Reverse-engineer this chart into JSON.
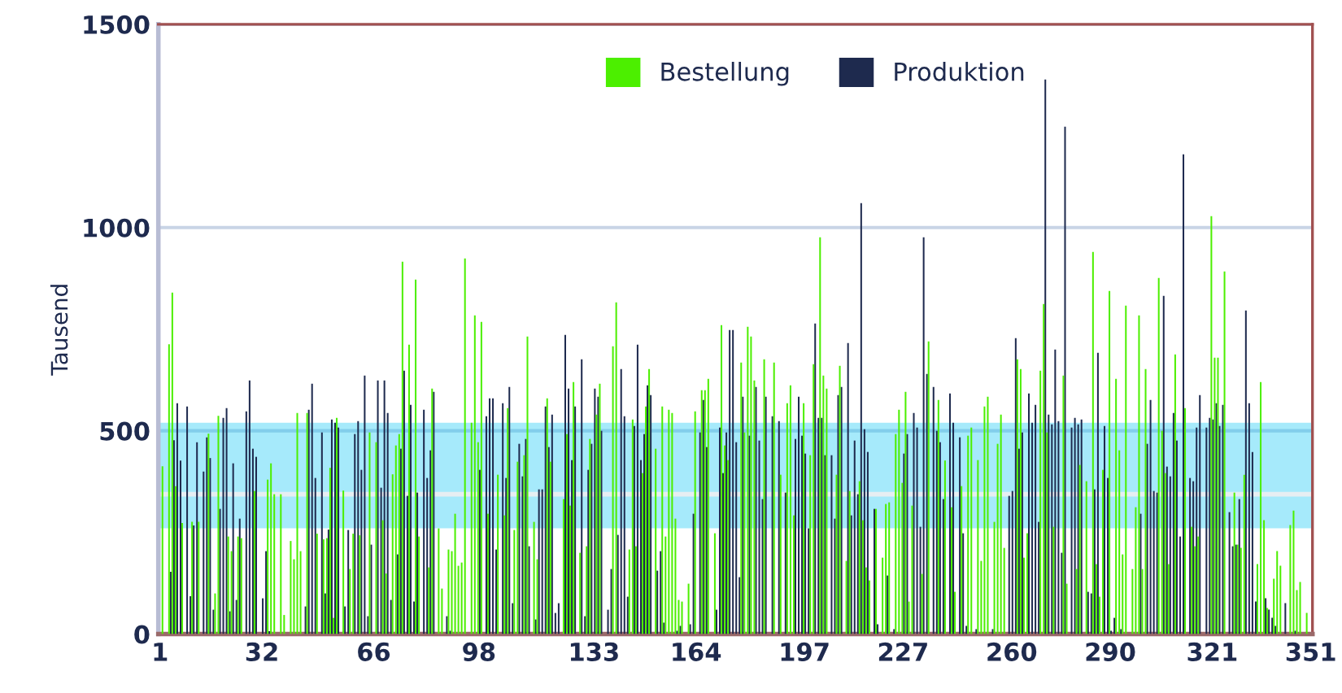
{
  "chart_data": {
    "type": "bar",
    "ylabel": "Tausend",
    "categories": [
      "1",
      null,
      null,
      null,
      null,
      null,
      null,
      null,
      null,
      null,
      null,
      null,
      null,
      null,
      null,
      null,
      null,
      null,
      null,
      null,
      null,
      null,
      null,
      null,
      null,
      null,
      null,
      null,
      null,
      null,
      null,
      "32",
      null,
      null,
      null,
      null,
      null,
      null,
      null,
      null,
      null,
      null,
      null,
      null,
      null,
      null,
      null,
      null,
      null,
      null,
      null,
      null,
      null,
      null,
      null,
      null,
      null,
      null,
      null,
      null,
      null,
      null,
      null,
      null,
      null,
      "66",
      null,
      null,
      null,
      null,
      null,
      null,
      null,
      null,
      null,
      null,
      null,
      null,
      null,
      null,
      null,
      null,
      null,
      null,
      null,
      null,
      null,
      null,
      null,
      null,
      null,
      null,
      null,
      null,
      null,
      null,
      null,
      "98",
      null,
      null,
      null,
      null,
      null,
      null,
      null,
      null,
      null,
      null,
      null,
      null,
      null,
      null,
      null,
      null,
      null,
      null,
      null,
      null,
      null,
      null,
      null,
      null,
      null,
      null,
      null,
      null,
      null,
      null,
      null,
      null,
      null,
      null,
      "133",
      null,
      null,
      null,
      null,
      null,
      null,
      null,
      null,
      null,
      null,
      null,
      null,
      null,
      null,
      null,
      null,
      null,
      null,
      null,
      null,
      null,
      null,
      null,
      null,
      null,
      null,
      null,
      null,
      null,
      null,
      "164",
      null,
      null,
      null,
      null,
      null,
      null,
      null,
      null,
      null,
      null,
      null,
      null,
      null,
      null,
      null,
      null,
      null,
      null,
      null,
      null,
      null,
      null,
      null,
      null,
      null,
      null,
      null,
      null,
      null,
      null,
      null,
      null,
      "197",
      null,
      null,
      null,
      null,
      null,
      null,
      null,
      null,
      null,
      null,
      null,
      null,
      null,
      null,
      null,
      null,
      null,
      null,
      null,
      null,
      null,
      null,
      null,
      null,
      null,
      null,
      null,
      null,
      null,
      "227",
      null,
      null,
      null,
      null,
      null,
      null,
      null,
      null,
      null,
      null,
      null,
      null,
      null,
      null,
      null,
      null,
      null,
      null,
      null,
      null,
      null,
      null,
      null,
      null,
      null,
      null,
      null,
      null,
      null,
      null,
      null,
      null,
      "260",
      null,
      null,
      null,
      null,
      null,
      null,
      null,
      null,
      null,
      null,
      null,
      null,
      null,
      null,
      null,
      null,
      null,
      null,
      null,
      null,
      null,
      null,
      null,
      null,
      null,
      null,
      null,
      null,
      null,
      "290",
      null,
      null,
      null,
      null,
      null,
      null,
      null,
      null,
      null,
      null,
      null,
      null,
      null,
      null,
      null,
      null,
      null,
      null,
      null,
      null,
      null,
      null,
      null,
      null,
      null,
      null,
      null,
      null,
      null,
      null,
      "321",
      null,
      null,
      null,
      null,
      null,
      null,
      null,
      null,
      null,
      null,
      null,
      null,
      null,
      null,
      null,
      null,
      null,
      null,
      null,
      null,
      null,
      null,
      null,
      null,
      null,
      null,
      null,
      null,
      null,
      "351"
    ],
    "series": [
      {
        "name": "Bestellung",
        "color": "#4cef00",
        "values": [
          null,
          413,
          null,
          713,
          840,
          364,
          null,
          273,
          null,
          null,
          276,
          null,
          276,
          null,
          null,
          493,
          null,
          100,
          537,
          null,
          null,
          240,
          204,
          null,
          240,
          236,
          null,
          null,
          null,
          352,
          null,
          null,
          null,
          380,
          420,
          344,
          null,
          344,
          47,
          null,
          229,
          184,
          544,
          204,
          null,
          544,
          null,
          null,
          247,
          null,
          233,
          236,
          409,
          40,
          532,
          null,
          353,
          null,
          160,
          247,
          null,
          243,
          null,
          null,
          496,
          null,
          472,
          null,
          280,
          149,
          null,
          393,
          464,
          492,
          916,
          null,
          712,
          null,
          872,
          240,
          null,
          null,
          164,
          604,
          null,
          260,
          112,
          null,
          208,
          204,
          296,
          168,
          176,
          924,
          null,
          520,
          784,
          472,
          768,
          null,
          296,
          null,
          null,
          392,
          null,
          292,
          556,
          null,
          256,
          424,
          null,
          440,
          732,
          null,
          276,
          184,
          null,
          null,
          580,
          424,
          null,
          null,
          null,
          332,
          492,
          316,
          620,
          null,
          200,
          null,
          216,
          480,
          null,
          540,
          616,
          null,
          null,
          null,
          708,
          816,
          null,
          null,
          null,
          208,
          528,
          216,
          null,
          396,
          560,
          652,
          null,
          456,
          null,
          560,
          240,
          552,
          544,
          284,
          84,
          80,
          null,
          124,
          null,
          548,
          null,
          600,
          600,
          628,
          null,
          248,
          null,
          760,
          464,
          428,
          null,
          null,
          null,
          668,
          496,
          756,
          732,
          624,
          null,
          null,
          676,
          null,
          null,
          668,
          null,
          392,
          null,
          568,
          612,
          292,
          null,
          null,
          568,
          null,
          440,
          664,
          null,
          976,
          636,
          604,
          null,
          null,
          392,
          660,
          null,
          180,
          352,
          null,
          null,
          376,
          280,
          164,
          132,
          null,
          308,
          null,
          188,
          320,
          324,
          null,
          492,
          552,
          372,
          596,
          80,
          316,
          null,
          null,
          148,
          null,
          720,
          null,
          null,
          576,
          null,
          427,
          null,
          312,
          104,
          null,
          364,
          null,
          488,
          508,
          null,
          428,
          180,
          560,
          584,
          null,
          276,
          468,
          540,
          212,
          null,
          null,
          null,
          676,
          652,
          188,
          248,
          null,
          null,
          null,
          648,
          812,
          496,
          null,
          264,
          null,
          null,
          636,
          124,
          null,
          null,
          160,
          416,
          null,
          376,
          null,
          940,
          172,
          92,
          404,
          null,
          844,
          null,
          628,
          452,
          196,
          808,
          null,
          160,
          312,
          784,
          160,
          652,
          null,
          null,
          null,
          876,
          500,
          396,
          172,
          null,
          688,
          null,
          null,
          556,
          null,
          264,
          216,
          240,
          null,
          null,
          null,
          1028,
          680,
          680,
          null,
          892,
          null,
          null,
          348,
          220,
          212,
          392,
          null,
          null,
          null,
          172,
          620,
          280,
          64,
          null,
          136,
          204,
          168,
          null,
          null,
          268,
          304,
          108,
          128,
          null,
          52,
          null
        ]
      },
      {
        "name": "Produktion",
        "color": "#1e2a4e",
        "values": [
          null,
          null,
          null,
          153,
          477,
          568,
          427,
          null,
          560,
          93,
          267,
          472,
          null,
          400,
          484,
          433,
          60,
          null,
          308,
          532,
          556,
          56,
          420,
          84,
          284,
          null,
          548,
          624,
          456,
          436,
          null,
          88,
          204,
          7,
          null,
          null,
          null,
          null,
          null,
          null,
          null,
          null,
          null,
          null,
          68,
          552,
          616,
          384,
          null,
          496,
          100,
          257,
          528,
          520,
          508,
          null,
          68,
          256,
          null,
          492,
          524,
          404,
          636,
          44,
          220,
          null,
          624,
          360,
          624,
          544,
          84,
          null,
          196,
          456,
          648,
          340,
          564,
          80,
          348,
          null,
          552,
          384,
          452,
          596,
          null,
          null,
          null,
          44,
          8,
          null,
          null,
          null,
          null,
          null,
          null,
          null,
          null,
          404,
          null,
          536,
          580,
          580,
          208,
          null,
          568,
          384,
          608,
          76,
          null,
          468,
          388,
          480,
          216,
          null,
          36,
          356,
          356,
          560,
          460,
          540,
          52,
          76,
          null,
          736,
          604,
          428,
          560,
          null,
          676,
          44,
          404,
          468,
          604,
          584,
          500,
          null,
          60,
          160,
          null,
          244,
          652,
          536,
          92,
          null,
          512,
          712,
          428,
          492,
          612,
          588,
          null,
          156,
          204,
          28,
          null,
          null,
          null,
          8,
          20,
          null,
          null,
          24,
          296,
          null,
          496,
          576,
          460,
          null,
          null,
          60,
          508,
          396,
          496,
          748,
          748,
          472,
          140,
          584,
          null,
          488,
          null,
          608,
          476,
          332,
          584,
          null,
          536,
          null,
          524,
          null,
          348,
          null,
          null,
          480,
          584,
          488,
          444,
          260,
          null,
          764,
          532,
          532,
          440,
          null,
          440,
          284,
          588,
          608,
          null,
          716,
          292,
          476,
          344,
          1060,
          504,
          448,
          null,
          308,
          24,
          null,
          null,
          144,
          null,
          12,
          null,
          null,
          444,
          492,
          null,
          544,
          508,
          264,
          976,
          640,
          null,
          608,
          500,
          472,
          332,
          null,
          592,
          520,
          null,
          484,
          248,
          20,
          null,
          null,
          12,
          null,
          null,
          null,
          null,
          12,
          null,
          null,
          null,
          null,
          340,
          352,
          728,
          456,
          496,
          null,
          592,
          520,
          564,
          276,
          null,
          1364,
          540,
          516,
          700,
          524,
          200,
          1248,
          null,
          508,
          532,
          516,
          528,
          null,
          104,
          100,
          356,
          692,
          null,
          512,
          384,
          8,
          40,
          null,
          12,
          null,
          null,
          null,
          null,
          null,
          296,
          null,
          468,
          576,
          352,
          348,
          null,
          832,
          412,
          388,
          544,
          476,
          240,
          1180,
          null,
          384,
          376,
          508,
          588,
          null,
          508,
          532,
          528,
          568,
          512,
          564,
          null,
          300,
          216,
          220,
          332,
          null,
          796,
          568,
          448,
          80,
          null,
          null,
          88,
          60,
          40,
          20,
          null,
          null,
          76,
          null,
          null,
          8,
          null,
          null,
          null,
          null,
          null
        ]
      }
    ],
    "ylim": [
      0,
      1500
    ],
    "yticks": [
      0,
      500,
      1000,
      1500
    ],
    "grid": "y",
    "legend": "top",
    "bands": [
      {
        "axis": "y",
        "from": 260,
        "to": 520,
        "color": "#00c4f4"
      }
    ],
    "ref_lines": [
      {
        "axis": "y",
        "value": 344,
        "color": "#e6eef2"
      }
    ]
  }
}
